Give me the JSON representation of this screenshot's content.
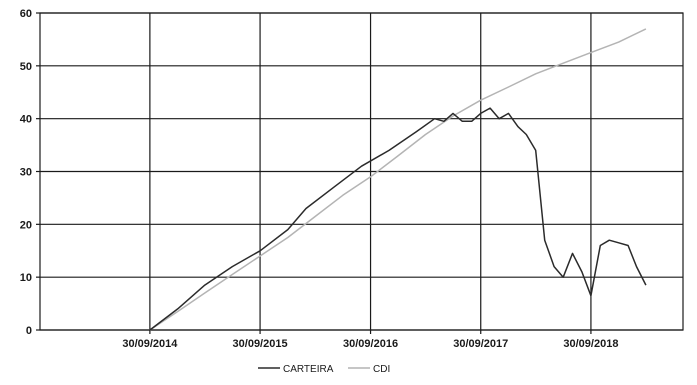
{
  "chart_data": {
    "type": "line",
    "title": "",
    "xlabel": "",
    "ylabel": "",
    "ylim": [
      0,
      60
    ],
    "yticks": [
      "0",
      "10",
      "20",
      "30",
      "40",
      "50",
      "60"
    ],
    "xlim": [
      "2013-10-01",
      "2019-08-01"
    ],
    "xticks": [
      {
        "date": "2014-09-30",
        "label": "30/09/2014"
      },
      {
        "date": "2015-09-30",
        "label": "30/09/2015"
      },
      {
        "date": "2016-09-30",
        "label": "30/09/2016"
      },
      {
        "date": "2017-09-30",
        "label": "30/09/2017"
      },
      {
        "date": "2018-09-30",
        "label": "30/09/2018"
      }
    ],
    "grid": true,
    "legend_position": "bottom-center",
    "series": [
      {
        "name": "CARTEIRA",
        "color": "#2b2b2b",
        "points": [
          [
            "2014-09-30",
            0
          ],
          [
            "2014-12-31",
            4
          ],
          [
            "2015-03-31",
            8.5
          ],
          [
            "2015-06-30",
            12
          ],
          [
            "2015-09-30",
            15
          ],
          [
            "2015-12-31",
            19
          ],
          [
            "2016-02-29",
            23
          ],
          [
            "2016-05-31",
            27
          ],
          [
            "2016-08-31",
            31
          ],
          [
            "2016-11-30",
            34
          ],
          [
            "2017-02-28",
            37.5
          ],
          [
            "2017-04-30",
            40
          ],
          [
            "2017-05-31",
            39.5
          ],
          [
            "2017-06-30",
            41
          ],
          [
            "2017-07-31",
            39.5
          ],
          [
            "2017-08-31",
            39.5
          ],
          [
            "2017-09-30",
            41
          ],
          [
            "2017-10-31",
            42
          ],
          [
            "2017-11-30",
            40
          ],
          [
            "2017-12-31",
            41
          ],
          [
            "2018-01-31",
            38.5
          ],
          [
            "2018-02-28",
            37
          ],
          [
            "2018-03-31",
            34
          ],
          [
            "2018-04-30",
            17
          ],
          [
            "2018-05-31",
            12
          ],
          [
            "2018-06-30",
            10
          ],
          [
            "2018-07-31",
            14.5
          ],
          [
            "2018-08-31",
            11
          ],
          [
            "2018-09-30",
            6.5
          ],
          [
            "2018-10-31",
            16
          ],
          [
            "2018-11-30",
            17
          ],
          [
            "2018-12-31",
            16.5
          ],
          [
            "2019-01-31",
            16
          ],
          [
            "2019-02-28",
            12
          ],
          [
            "2019-03-31",
            8.5
          ]
        ]
      },
      {
        "name": "CDI",
        "color": "#b4b4b4",
        "points": [
          [
            "2014-09-30",
            0
          ],
          [
            "2014-12-31",
            3.5
          ],
          [
            "2015-03-31",
            7
          ],
          [
            "2015-06-30",
            10.5
          ],
          [
            "2015-09-30",
            14
          ],
          [
            "2015-12-31",
            17.5
          ],
          [
            "2016-03-31",
            21.5
          ],
          [
            "2016-06-30",
            25.5
          ],
          [
            "2016-09-30",
            29
          ],
          [
            "2016-12-31",
            33
          ],
          [
            "2017-03-31",
            37
          ],
          [
            "2017-06-30",
            40.5
          ],
          [
            "2017-09-30",
            43.5
          ],
          [
            "2017-12-31",
            46
          ],
          [
            "2018-03-31",
            48.5
          ],
          [
            "2018-06-30",
            50.5
          ],
          [
            "2018-09-30",
            52.5
          ],
          [
            "2018-12-31",
            54.5
          ],
          [
            "2019-03-31",
            57
          ]
        ]
      }
    ]
  }
}
